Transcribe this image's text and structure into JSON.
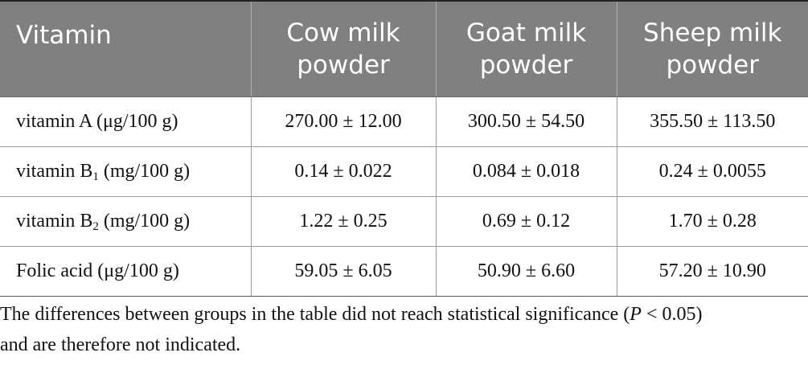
{
  "table": {
    "header": {
      "vitamin": "Vitamin",
      "col1_line1": "Cow milk",
      "col1_line2": "powder",
      "col2_line1": "Goat milk",
      "col2_line2": "powder",
      "col3_line1": "Sheep milk",
      "col3_line2": "powder"
    },
    "rows": [
      {
        "label_pre": "vitamin A (μg/100 g)",
        "label_sub": "",
        "label_post": "",
        "cow": "270.00 ± 12.00",
        "goat": "300.50 ± 54.50",
        "sheep": "355.50 ± 113.50"
      },
      {
        "label_pre": "vitamin B",
        "label_sub": "1",
        "label_post": " (mg/100 g)",
        "cow": "0.14 ± 0.022",
        "goat": "0.084 ± 0.018",
        "sheep": "0.24 ± 0.0055"
      },
      {
        "label_pre": "vitamin B",
        "label_sub": "2",
        "label_post": " (mg/100 g)",
        "cow": "1.22 ± 0.25",
        "goat": "0.69 ± 0.12",
        "sheep": "1.70 ± 0.28"
      },
      {
        "label_pre": "Folic acid (μg/100 g)",
        "label_sub": "",
        "label_post": "",
        "cow": "59.05 ± 6.05",
        "goat": "50.90 ± 6.60",
        "sheep": "57.20 ± 10.90"
      }
    ]
  },
  "footnote": {
    "part1": "The differences between groups in the table did not reach statistical significance (",
    "p_italic": "P",
    "part2": " < 0.05)",
    "line2": "and are therefore not indicated."
  }
}
